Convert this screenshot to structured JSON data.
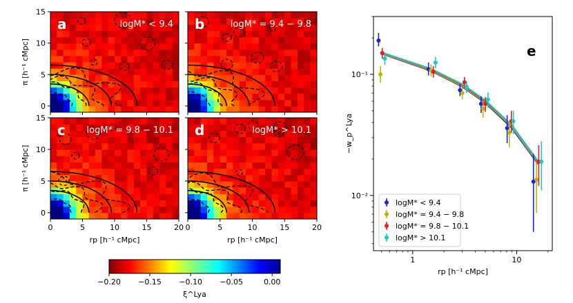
{
  "chart_data": [
    {
      "type": "heatmap",
      "panels": [
        {
          "letter": "a",
          "title": "logM* < 9.4"
        },
        {
          "letter": "b",
          "title": "logM* = 9.4 − 9.8"
        },
        {
          "letter": "c",
          "title": "logM* = 9.8 − 10.1"
        },
        {
          "letter": "d",
          "title": "logM* > 10.1"
        }
      ],
      "xlabel": "rp [h⁻¹ cMpc]",
      "ylabel": "π [h⁻¹ cMpc]",
      "xlim": [
        0,
        20
      ],
      "ylim": [
        -1,
        15
      ],
      "xticks": [
        "0",
        "5",
        "10",
        "15",
        "20"
      ],
      "yticks": [
        "0",
        "5",
        "10",
        "15"
      ],
      "colorbar": {
        "label": "ξ^Lya",
        "range": [
          -0.2,
          0.01
        ],
        "ticks": [
          "−0.20",
          "−0.15",
          "−0.10",
          "−0.05",
          "0.00"
        ]
      }
    },
    {
      "type": "scatter",
      "letter": "e",
      "xlabel": "rp [h⁻¹ cMpc]",
      "ylabel": "−w_p^Lya",
      "xscale": "log",
      "yscale": "log",
      "xlim": [
        0.42,
        22
      ],
      "ylim": [
        0.0035,
        0.3
      ],
      "xticks": [
        "1",
        "10"
      ],
      "yticks": [
        "10⁻²",
        "10⁻¹"
      ],
      "legend_position": "lower-left",
      "series": [
        {
          "name": "logM* < 9.4",
          "color": "#1f1fdc",
          "x": [
            0.47,
            1.42,
            2.85,
            4.55,
            8.1,
            14.5
          ],
          "y": [
            0.19,
            0.11,
            0.074,
            0.057,
            0.036,
            0.013
          ],
          "yerr_low": [
            0.17,
            0.098,
            0.066,
            0.048,
            0.027,
            0.005
          ],
          "yerr_high": [
            0.22,
            0.125,
            0.083,
            0.066,
            0.046,
            0.022
          ]
        },
        {
          "name": "logM* = 9.4 − 9.8",
          "color": "#bdb500",
          "x": [
            0.49,
            1.5,
            3.0,
            4.75,
            8.5,
            15.5
          ],
          "y": [
            0.1,
            0.108,
            0.07,
            0.052,
            0.033,
            0.0135
          ],
          "yerr_low": [
            0.085,
            0.096,
            0.062,
            0.044,
            0.025,
            0.0072
          ],
          "yerr_high": [
            0.117,
            0.121,
            0.078,
            0.06,
            0.041,
            0.019
          ]
        },
        {
          "name": "logM* = 9.8 − 10.1",
          "color": "#e21e1e",
          "x": [
            0.51,
            1.58,
            3.15,
            5.0,
            8.9,
            16.3
          ],
          "y": [
            0.15,
            0.105,
            0.086,
            0.057,
            0.041,
            0.019
          ],
          "yerr_low": [
            0.135,
            0.094,
            0.077,
            0.049,
            0.033,
            0.012
          ],
          "yerr_high": [
            0.165,
            0.117,
            0.095,
            0.065,
            0.05,
            0.026
          ]
        },
        {
          "name": "logM* > 10.1",
          "color": "#1ec8c8",
          "x": [
            0.54,
            1.66,
            3.3,
            5.3,
            9.3,
            17.3
          ],
          "y": [
            0.135,
            0.125,
            0.079,
            0.062,
            0.041,
            0.019
          ],
          "yerr_low": [
            0.12,
            0.112,
            0.07,
            0.053,
            0.032,
            0.011
          ],
          "yerr_high": [
            0.15,
            0.139,
            0.088,
            0.071,
            0.05,
            0.028
          ]
        }
      ],
      "fit_lines": [
        {
          "color": "#1f1fdc",
          "x": [
            0.5,
            1.5,
            3.0,
            5.0,
            9.0,
            16.0
          ],
          "y": [
            0.148,
            0.107,
            0.079,
            0.058,
            0.036,
            0.0182
          ]
        },
        {
          "color": "#bdb500",
          "x": [
            0.5,
            1.5,
            3.0,
            5.0,
            9.0,
            16.0
          ],
          "y": [
            0.149,
            0.108,
            0.08,
            0.059,
            0.037,
            0.0185
          ]
        },
        {
          "color": "#e21e1e",
          "x": [
            0.5,
            1.5,
            3.0,
            5.0,
            9.0,
            16.0
          ],
          "y": [
            0.151,
            0.11,
            0.082,
            0.06,
            0.038,
            0.019
          ]
        },
        {
          "color": "#1ec8c8",
          "x": [
            0.5,
            1.5,
            3.0,
            5.0,
            9.0,
            16.0
          ],
          "y": [
            0.152,
            0.111,
            0.083,
            0.061,
            0.038,
            0.0193
          ]
        }
      ]
    }
  ]
}
